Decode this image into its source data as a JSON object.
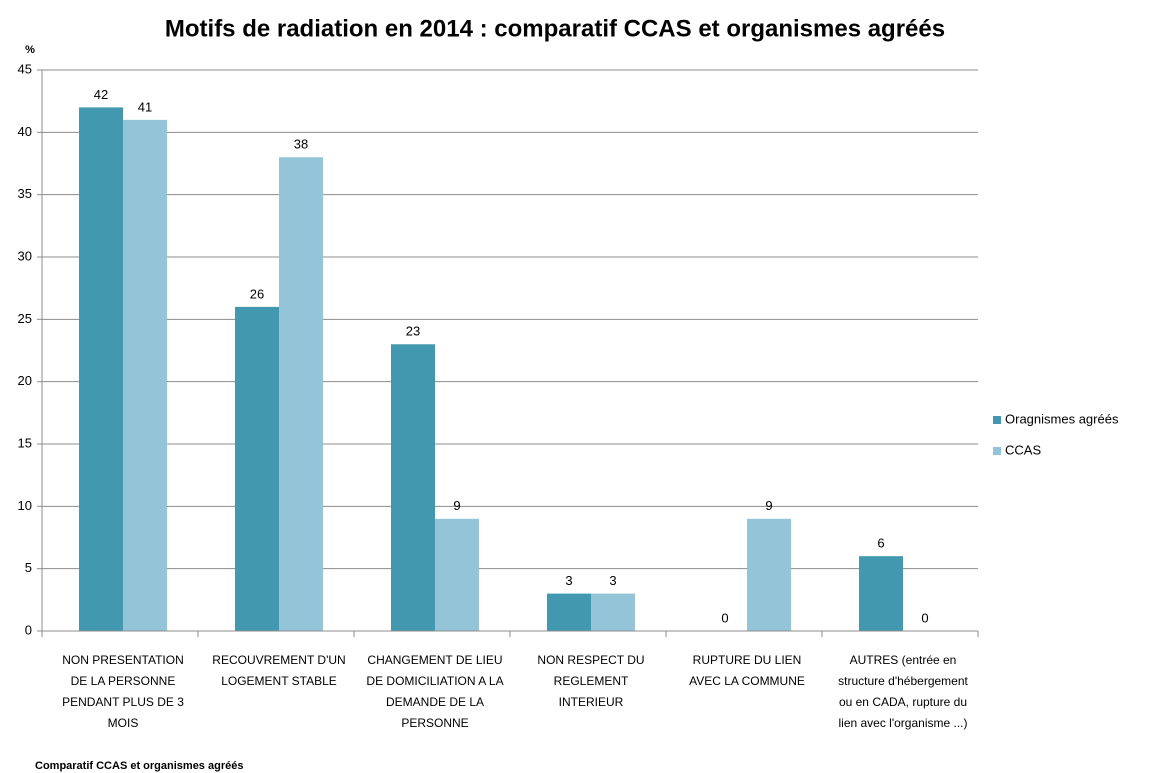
{
  "chart_data": {
    "type": "bar",
    "title": "Motifs de radiation en 2014 : comparatif CCAS et organismes agréés",
    "y_label": "%",
    "footnote": "Comparatif CCAS et organismes agréés",
    "categories": [
      "NON PRESENTATION DE LA PERSONNE PENDANT PLUS DE 3 MOIS",
      "RECOUVREMENT D'UN LOGEMENT STABLE",
      "CHANGEMENT DE LIEU DE DOMICILIATION A LA DEMANDE DE LA PERSONNE",
      "NON RESPECT DU REGLEMENT INTERIEUR",
      "RUPTURE DU LIEN AVEC LA COMMUNE",
      "AUTRES (entrée en structure d'hébergement ou en CADA, rupture du lien avec l'organisme ...)"
    ],
    "series": [
      {
        "name": "Oragnismes agréés",
        "color": "#4298ae",
        "values": [
          42,
          26,
          23,
          3,
          0,
          6
        ]
      },
      {
        "name": "CCAS",
        "color": "#93c4d7",
        "values": [
          41,
          38,
          9,
          3,
          9,
          0
        ]
      }
    ],
    "ylim": [
      0,
      45
    ],
    "yticks": [
      0,
      5,
      10,
      15,
      20,
      25,
      30,
      35,
      40,
      45
    ],
    "grid": true,
    "legend": "right"
  }
}
